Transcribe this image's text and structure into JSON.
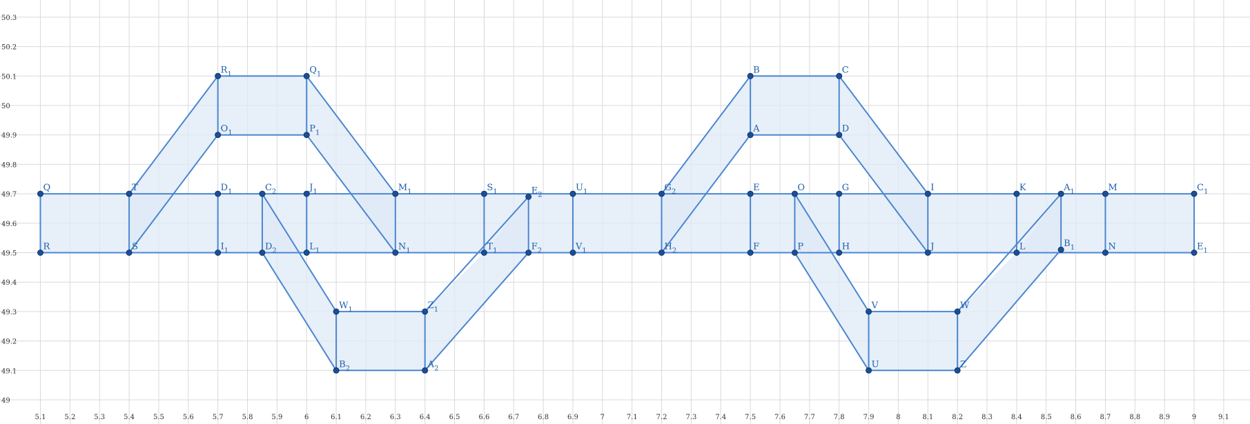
{
  "chart_data": {
    "type": "diagram",
    "xlim": [
      5.08,
      9.08
    ],
    "ylim": [
      48.96,
      50.32
    ],
    "grid": true,
    "x_ticks": [
      "5.1",
      "5.2",
      "5.3",
      "5.4",
      "5.5",
      "5.6",
      "5.7",
      "5.8",
      "5.9",
      "6",
      "6.1",
      "6.2",
      "6.3",
      "6.4",
      "6.5",
      "6.6",
      "6.7",
      "6.8",
      "6.9",
      "7",
      "7.1",
      "7.2",
      "7.3",
      "7.4",
      "7.5",
      "7.6",
      "7.7",
      "7.8",
      "7.9",
      "8",
      "8.1",
      "8.2",
      "8.3",
      "8.4",
      "8.5",
      "8.6",
      "8.7",
      "8.8",
      "8.9",
      "9",
      "9.1",
      "9"
    ],
    "y_ticks": [
      "49",
      "49.1",
      "49.2",
      "49.3",
      "49.4",
      "49.5",
      "49.6",
      "49.7",
      "49.8",
      "49.9",
      "50",
      "50.1",
      "50.2",
      "50.3"
    ],
    "points": [
      {
        "label": "Q",
        "sub": "",
        "x": 5.1,
        "y": 49.7
      },
      {
        "label": "R",
        "sub": "",
        "x": 5.1,
        "y": 49.5
      },
      {
        "label": "T",
        "sub": "",
        "x": 5.4,
        "y": 49.7
      },
      {
        "label": "S",
        "sub": "",
        "x": 5.4,
        "y": 49.5
      },
      {
        "label": "R",
        "sub": "1",
        "x": 5.7,
        "y": 50.1
      },
      {
        "label": "Q",
        "sub": "1",
        "x": 6.0,
        "y": 50.1
      },
      {
        "label": "O",
        "sub": "1",
        "x": 5.7,
        "y": 49.9
      },
      {
        "label": "P",
        "sub": "1",
        "x": 6.0,
        "y": 49.9
      },
      {
        "label": "D",
        "sub": "1",
        "x": 5.7,
        "y": 49.7
      },
      {
        "label": "I",
        "sub": "1",
        "x": 5.7,
        "y": 49.5
      },
      {
        "label": "C",
        "sub": "2",
        "x": 5.85,
        "y": 49.7
      },
      {
        "label": "D",
        "sub": "2",
        "x": 5.85,
        "y": 49.5
      },
      {
        "label": "J",
        "sub": "1",
        "x": 6.0,
        "y": 49.7
      },
      {
        "label": "L",
        "sub": "1",
        "x": 6.0,
        "y": 49.5
      },
      {
        "label": "M",
        "sub": "1",
        "x": 6.3,
        "y": 49.7
      },
      {
        "label": "N",
        "sub": "1",
        "x": 6.3,
        "y": 49.5
      },
      {
        "label": "W",
        "sub": "1",
        "x": 6.1,
        "y": 49.3
      },
      {
        "label": "Z",
        "sub": "1",
        "x": 6.4,
        "y": 49.3
      },
      {
        "label": "B",
        "sub": "2",
        "x": 6.1,
        "y": 49.1
      },
      {
        "label": "A",
        "sub": "2",
        "x": 6.4,
        "y": 49.1
      },
      {
        "label": "S",
        "sub": "1",
        "x": 6.6,
        "y": 49.7
      },
      {
        "label": "T",
        "sub": "1",
        "x": 6.6,
        "y": 49.5
      },
      {
        "label": "E",
        "sub": "2",
        "x": 6.75,
        "y": 49.69
      },
      {
        "label": "F",
        "sub": "2",
        "x": 6.75,
        "y": 49.5
      },
      {
        "label": "U",
        "sub": "1",
        "x": 6.9,
        "y": 49.7
      },
      {
        "label": "V",
        "sub": "1",
        "x": 6.9,
        "y": 49.5
      },
      {
        "label": "G",
        "sub": "2",
        "x": 7.2,
        "y": 49.7
      },
      {
        "label": "H",
        "sub": "2",
        "x": 7.2,
        "y": 49.5
      },
      {
        "label": "B",
        "sub": "",
        "x": 7.5,
        "y": 50.1
      },
      {
        "label": "C",
        "sub": "",
        "x": 7.8,
        "y": 50.1
      },
      {
        "label": "A",
        "sub": "",
        "x": 7.5,
        "y": 49.9
      },
      {
        "label": "D",
        "sub": "",
        "x": 7.8,
        "y": 49.9
      },
      {
        "label": "E",
        "sub": "",
        "x": 7.5,
        "y": 49.7
      },
      {
        "label": "F",
        "sub": "",
        "x": 7.5,
        "y": 49.5
      },
      {
        "label": "O",
        "sub": "",
        "x": 7.65,
        "y": 49.7
      },
      {
        "label": "P",
        "sub": "",
        "x": 7.65,
        "y": 49.5
      },
      {
        "label": "G",
        "sub": "",
        "x": 7.8,
        "y": 49.7
      },
      {
        "label": "H",
        "sub": "",
        "x": 7.8,
        "y": 49.5
      },
      {
        "label": "I",
        "sub": "",
        "x": 8.1,
        "y": 49.7
      },
      {
        "label": "J",
        "sub": "",
        "x": 8.1,
        "y": 49.5
      },
      {
        "label": "V",
        "sub": "",
        "x": 7.9,
        "y": 49.3
      },
      {
        "label": "W",
        "sub": "",
        "x": 8.2,
        "y": 49.3
      },
      {
        "label": "U",
        "sub": "",
        "x": 7.9,
        "y": 49.1
      },
      {
        "label": "Z",
        "sub": "",
        "x": 8.2,
        "y": 49.1
      },
      {
        "label": "K",
        "sub": "",
        "x": 8.4,
        "y": 49.7
      },
      {
        "label": "L",
        "sub": "",
        "x": 8.4,
        "y": 49.5
      },
      {
        "label": "A",
        "sub": "1",
        "x": 8.55,
        "y": 49.7
      },
      {
        "label": "B",
        "sub": "1",
        "x": 8.55,
        "y": 49.51
      },
      {
        "label": "M",
        "sub": "",
        "x": 8.7,
        "y": 49.7
      },
      {
        "label": "N",
        "sub": "",
        "x": 8.7,
        "y": 49.5
      },
      {
        "label": "C",
        "sub": "1",
        "x": 9.0,
        "y": 49.7
      },
      {
        "label": "E",
        "sub": "1",
        "x": 9.0,
        "y": 49.5
      }
    ],
    "polygons": [
      [
        [
          5.1,
          49.7
        ],
        [
          9.0,
          49.7
        ],
        [
          9.0,
          49.5
        ],
        [
          5.1,
          49.5
        ]
      ],
      [
        [
          5.4,
          49.7
        ],
        [
          5.7,
          50.1
        ],
        [
          6.0,
          50.1
        ],
        [
          6.3,
          49.7
        ],
        [
          6.3,
          49.5
        ],
        [
          6.0,
          49.9
        ],
        [
          5.7,
          49.9
        ],
        [
          5.4,
          49.5
        ]
      ],
      [
        [
          5.85,
          49.7
        ],
        [
          6.1,
          49.3
        ],
        [
          6.4,
          49.3
        ],
        [
          6.6,
          49.5
        ],
        [
          6.75,
          49.69
        ],
        [
          6.75,
          49.5
        ],
        [
          6.4,
          49.1
        ],
        [
          6.1,
          49.1
        ],
        [
          5.85,
          49.5
        ]
      ],
      [
        [
          7.2,
          49.7
        ],
        [
          7.5,
          50.1
        ],
        [
          7.8,
          50.1
        ],
        [
          8.1,
          49.7
        ],
        [
          8.1,
          49.5
        ],
        [
          7.8,
          49.9
        ],
        [
          7.5,
          49.9
        ],
        [
          7.2,
          49.5
        ]
      ],
      [
        [
          7.65,
          49.7
        ],
        [
          7.9,
          49.3
        ],
        [
          8.2,
          49.3
        ],
        [
          8.4,
          49.5
        ],
        [
          8.55,
          49.7
        ],
        [
          8.55,
          49.51
        ],
        [
          8.2,
          49.1
        ],
        [
          7.9,
          49.1
        ],
        [
          7.65,
          49.5
        ]
      ]
    ],
    "segments": [
      [
        5.1,
        49.7,
        9.0,
        49.7
      ],
      [
        5.1,
        49.5,
        9.0,
        49.5
      ],
      [
        5.1,
        49.7,
        5.1,
        49.5
      ],
      [
        5.4,
        49.7,
        5.4,
        49.5
      ],
      [
        5.7,
        49.7,
        5.7,
        49.5
      ],
      [
        5.85,
        49.7,
        5.85,
        49.5
      ],
      [
        6.0,
        49.7,
        6.0,
        49.5
      ],
      [
        6.3,
        49.7,
        6.3,
        49.5
      ],
      [
        6.6,
        49.7,
        6.6,
        49.5
      ],
      [
        6.75,
        49.69,
        6.75,
        49.5
      ],
      [
        6.9,
        49.7,
        6.9,
        49.5
      ],
      [
        7.2,
        49.7,
        7.2,
        49.5
      ],
      [
        7.5,
        49.7,
        7.5,
        49.5
      ],
      [
        7.65,
        49.7,
        7.65,
        49.5
      ],
      [
        7.8,
        49.7,
        7.8,
        49.5
      ],
      [
        8.1,
        49.7,
        8.1,
        49.5
      ],
      [
        8.4,
        49.7,
        8.4,
        49.5
      ],
      [
        8.55,
        49.7,
        8.55,
        49.51
      ],
      [
        8.7,
        49.7,
        8.7,
        49.5
      ],
      [
        9.0,
        49.7,
        9.0,
        49.5
      ],
      [
        5.4,
        49.7,
        5.7,
        50.1
      ],
      [
        5.7,
        50.1,
        6.0,
        50.1
      ],
      [
        6.0,
        50.1,
        6.3,
        49.7
      ],
      [
        5.4,
        49.5,
        5.7,
        49.9
      ],
      [
        5.7,
        49.9,
        6.0,
        49.9
      ],
      [
        6.0,
        49.9,
        6.3,
        49.5
      ],
      [
        5.7,
        50.1,
        5.7,
        49.9
      ],
      [
        6.0,
        50.1,
        6.0,
        49.9
      ],
      [
        5.85,
        49.7,
        6.1,
        49.3
      ],
      [
        6.1,
        49.3,
        6.4,
        49.3
      ],
      [
        6.4,
        49.3,
        6.75,
        49.69
      ],
      [
        5.85,
        49.5,
        6.1,
        49.1
      ],
      [
        6.1,
        49.1,
        6.4,
        49.1
      ],
      [
        6.4,
        49.1,
        6.75,
        49.5
      ],
      [
        6.1,
        49.3,
        6.1,
        49.1
      ],
      [
        6.4,
        49.3,
        6.4,
        49.1
      ],
      [
        7.2,
        49.7,
        7.5,
        50.1
      ],
      [
        7.5,
        50.1,
        7.8,
        50.1
      ],
      [
        7.8,
        50.1,
        8.1,
        49.7
      ],
      [
        7.2,
        49.5,
        7.5,
        49.9
      ],
      [
        7.5,
        49.9,
        7.8,
        49.9
      ],
      [
        7.8,
        49.9,
        8.1,
        49.5
      ],
      [
        7.5,
        50.1,
        7.5,
        49.9
      ],
      [
        7.8,
        50.1,
        7.8,
        49.9
      ],
      [
        7.65,
        49.7,
        7.9,
        49.3
      ],
      [
        7.9,
        49.3,
        8.2,
        49.3
      ],
      [
        8.2,
        49.3,
        8.55,
        49.7
      ],
      [
        7.65,
        49.5,
        7.9,
        49.1
      ],
      [
        7.9,
        49.1,
        8.2,
        49.1
      ],
      [
        8.2,
        49.1,
        8.55,
        49.51
      ],
      [
        7.9,
        49.3,
        7.9,
        49.1
      ],
      [
        8.2,
        49.3,
        8.2,
        49.1
      ]
    ],
    "colors": {
      "stroke": "#4a86cf",
      "fill": "#dfe9f7",
      "point": "#1c4f94",
      "label": "#1f5fae",
      "grid": "#d9d9d9"
    }
  }
}
